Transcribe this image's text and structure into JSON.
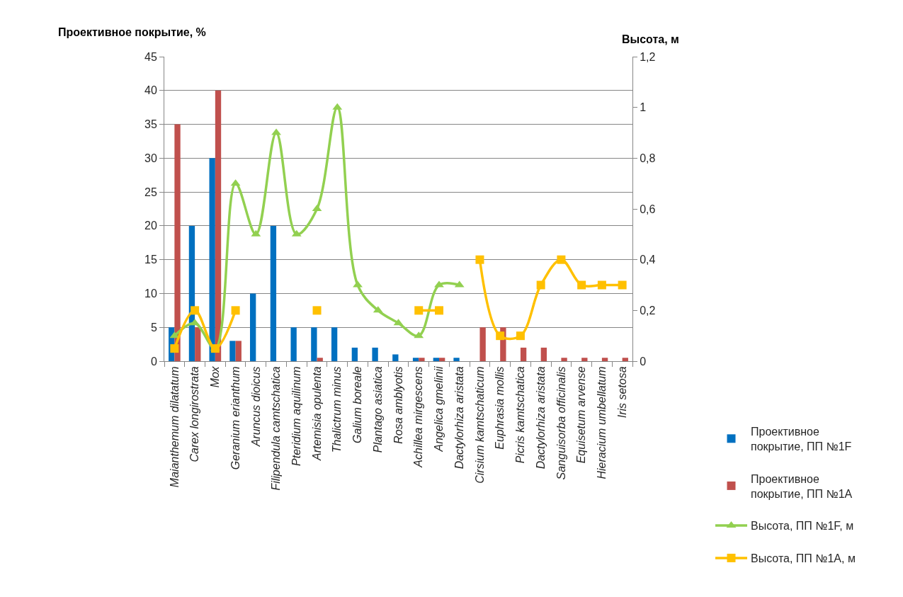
{
  "chart_data": {
    "type": "bar",
    "ylabel": "Проективное покрытие, %",
    "y2label": "Высота, м",
    "categories": [
      "Maianthemum dilatatum",
      "Carex longirostrata",
      "Мох",
      "Geranium erianthum",
      "Aruncus dioicus",
      "Filipendula camtschatica",
      "Pteridium aquilinum",
      "Artemisia opulenta",
      "Thalictrum minus",
      "Galium boreale",
      "Plantago asiatica",
      "Rosa amblyotis",
      "Achillea mirgescens",
      "Angelica gmelinii",
      "Dactylorhiza aristata",
      "Cirsium kamtschaticum",
      "Euphrasia mollis",
      "Picris kamtschatica",
      "Dactylorhiza aristata",
      "Sanguisorba officinalis",
      "Equisetum arvense",
      "Hieracium umbellatum",
      "Iris setosa"
    ],
    "series": [
      {
        "name": "Проективное покрытие, ПП №1F",
        "color": "#0070c0",
        "values": [
          5,
          20,
          30,
          3,
          10,
          20,
          5,
          5,
          5,
          2,
          2,
          1,
          0.5,
          0.5,
          0.5,
          null,
          null,
          null,
          null,
          null,
          null,
          null,
          null
        ]
      },
      {
        "name": "Проективное покрытие, ПП №1A",
        "color": "#c0504d",
        "values": [
          35,
          5,
          40,
          3,
          null,
          null,
          null,
          0.5,
          null,
          null,
          null,
          null,
          0.5,
          0.5,
          null,
          5,
          5,
          2,
          2,
          0.5,
          0.5,
          0.5,
          0.5
        ]
      },
      {
        "name": "Высота, ПП №1F, м",
        "color": "#92d050",
        "type": "line",
        "axis": "y2",
        "marker": "triangle",
        "line_style": "solid",
        "values": [
          0.1,
          0.15,
          0.05,
          0.7,
          0.5,
          0.9,
          0.5,
          0.6,
          1.0,
          0.3,
          0.2,
          0.15,
          0.1,
          0.3,
          0.3,
          null,
          null,
          null,
          null,
          null,
          null,
          null,
          null
        ]
      },
      {
        "name": "Высота, ПП №1A, м",
        "color": "#ffc000",
        "type": "line",
        "axis": "y2",
        "marker": "square",
        "line_style": "solid",
        "values": [
          0.05,
          0.2,
          0.05,
          0.2,
          null,
          null,
          null,
          0.2,
          null,
          null,
          null,
          null,
          0.2,
          0.2,
          null,
          0.4,
          0.1,
          0.1,
          0.3,
          0.4,
          0.3,
          0.3,
          0.3
        ]
      }
    ],
    "ylim": [
      0,
      45
    ],
    "yticks": [
      0,
      5,
      10,
      15,
      20,
      25,
      30,
      35,
      40,
      45
    ],
    "y2lim": [
      0,
      1.2
    ],
    "y2ticks": [
      0,
      {
        "value": 0.2,
        "label": "0,2"
      },
      {
        "value": 0.4,
        "label": "0,4"
      },
      {
        "value": 0.6,
        "label": "0,6"
      },
      {
        "value": 0.8,
        "label": "0,8"
      },
      1,
      {
        "value": 1.2,
        "label": "1,2"
      }
    ],
    "grid": "y",
    "legend": "bottom right"
  }
}
